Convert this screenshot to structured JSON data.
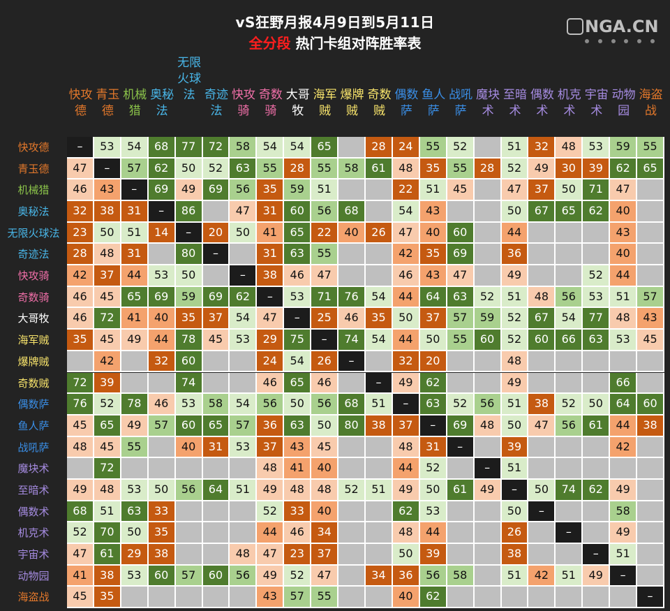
{
  "title": {
    "line1": "vS狂野月报4月9日到5月11日",
    "line2_red": "全分段",
    "line2_rest": " 热门卡组对阵胜率表"
  },
  "watermark": {
    "text": "NGA.CN"
  },
  "colors": {
    "very_high": "#4f7c2e",
    "high": "#a9d08e",
    "mid_high": "#d9ecc9",
    "mid_low": "#f8cbad",
    "low": "#f4a26d",
    "very_low": "#c55a11",
    "empty": "#bfbfbf",
    "self": "#1c1c1c",
    "background": "#232323"
  },
  "decks": [
    {
      "name": "快攻德",
      "color": "#e3782b"
    },
    {
      "name": "青玉德",
      "color": "#e3782b"
    },
    {
      "name": "机械猎",
      "color": "#8bc34a"
    },
    {
      "name": "奥秘法",
      "color": "#49b6e8"
    },
    {
      "name": "无限火球法",
      "color": "#49b6e8"
    },
    {
      "name": "奇迹法",
      "color": "#49b6e8"
    },
    {
      "name": "快攻骑",
      "color": "#f06fa8"
    },
    {
      "name": "奇数骑",
      "color": "#f06fa8"
    },
    {
      "name": "大哥牧",
      "color": "#ffffff"
    },
    {
      "name": "海军贼",
      "color": "#f7e36b"
    },
    {
      "name": "爆牌贼",
      "color": "#f7e36b"
    },
    {
      "name": "奇数贼",
      "color": "#f7e36b"
    },
    {
      "name": "偶数萨",
      "color": "#3a8ee6"
    },
    {
      "name": "鱼人萨",
      "color": "#3a8ee6"
    },
    {
      "name": "战吼萨",
      "color": "#3a8ee6"
    },
    {
      "name": "魔块术",
      "color": "#a58be0"
    },
    {
      "name": "至暗术",
      "color": "#a58be0"
    },
    {
      "name": "偶数术",
      "color": "#a58be0"
    },
    {
      "name": "机克术",
      "color": "#a58be0"
    },
    {
      "name": "宇宙术",
      "color": "#a58be0"
    },
    {
      "name": "动物园",
      "color": "#a58be0"
    },
    {
      "name": "海盗战",
      "color": "#e3782b"
    }
  ],
  "chart_data": {
    "type": "heatmap",
    "title": "vS狂野月报4月9日到5月11日 全分段 热门卡组对阵胜率表",
    "diagonal_label": "–",
    "x": [
      "快攻德",
      "青玉德",
      "机械猎",
      "奥秘法",
      "无限火球法",
      "奇迹法",
      "快攻骑",
      "奇数骑",
      "大哥牧",
      "海军贼",
      "爆牌贼",
      "奇数贼",
      "偶数萨",
      "鱼人萨",
      "战吼萨",
      "魔块术",
      "至暗术",
      "偶数术",
      "机克术",
      "宇宙术",
      "动物园",
      "海盗战"
    ],
    "y": [
      "快攻德",
      "青玉德",
      "机械猎",
      "奥秘法",
      "无限火球法",
      "奇迹法",
      "快攻骑",
      "奇数骑",
      "大哥牧",
      "海军贼",
      "爆牌贼",
      "奇数贼",
      "偶数萨",
      "鱼人萨",
      "战吼萨",
      "魔块术",
      "至暗术",
      "偶数术",
      "机克术",
      "宇宙术",
      "动物园",
      "海盗战"
    ],
    "values": [
      [
        "self",
        53,
        54,
        68,
        77,
        72,
        58,
        54,
        54,
        65,
        null,
        28,
        24,
        55,
        52,
        null,
        51,
        32,
        48,
        53,
        59,
        55
      ],
      [
        47,
        "self",
        57,
        62,
        50,
        52,
        63,
        55,
        28,
        55,
        58,
        61,
        48,
        35,
        55,
        28,
        52,
        49,
        30,
        39,
        62,
        65
      ],
      [
        46,
        43,
        "self",
        69,
        49,
        69,
        56,
        35,
        59,
        51,
        null,
        null,
        22,
        51,
        45,
        null,
        47,
        37,
        50,
        71,
        47,
        null
      ],
      [
        32,
        38,
        31,
        "self",
        86,
        null,
        47,
        31,
        60,
        56,
        68,
        null,
        54,
        43,
        null,
        null,
        50,
        67,
        65,
        62,
        40,
        null
      ],
      [
        23,
        50,
        51,
        14,
        "self",
        20,
        50,
        41,
        65,
        22,
        40,
        26,
        47,
        40,
        60,
        null,
        44,
        null,
        null,
        null,
        43,
        null
      ],
      [
        28,
        48,
        31,
        null,
        80,
        "self",
        null,
        31,
        63,
        55,
        null,
        null,
        42,
        35,
        69,
        null,
        36,
        null,
        null,
        null,
        40,
        null
      ],
      [
        42,
        37,
        44,
        53,
        50,
        null,
        "self",
        38,
        46,
        47,
        null,
        null,
        46,
        43,
        47,
        null,
        49,
        null,
        null,
        52,
        44,
        null
      ],
      [
        46,
        45,
        65,
        69,
        59,
        69,
        62,
        "self",
        53,
        71,
        76,
        54,
        44,
        64,
        63,
        52,
        51,
        48,
        56,
        53,
        51,
        57
      ],
      [
        46,
        72,
        41,
        40,
        35,
        37,
        54,
        47,
        "self",
        25,
        46,
        35,
        50,
        37,
        57,
        59,
        52,
        67,
        54,
        77,
        48,
        43
      ],
      [
        35,
        45,
        49,
        44,
        78,
        45,
        53,
        29,
        75,
        "self",
        74,
        54,
        44,
        50,
        55,
        60,
        52,
        60,
        66,
        63,
        53,
        45
      ],
      [
        null,
        42,
        null,
        32,
        60,
        null,
        null,
        24,
        54,
        26,
        "self",
        null,
        32,
        20,
        null,
        null,
        48,
        null,
        null,
        null,
        null,
        null
      ],
      [
        72,
        39,
        null,
        null,
        74,
        null,
        null,
        46,
        65,
        46,
        null,
        "self",
        49,
        62,
        null,
        null,
        49,
        null,
        null,
        null,
        66,
        null
      ],
      [
        76,
        52,
        78,
        46,
        53,
        58,
        54,
        56,
        50,
        56,
        68,
        51,
        "self",
        63,
        52,
        56,
        51,
        38,
        52,
        50,
        64,
        60
      ],
      [
        45,
        65,
        49,
        57,
        60,
        65,
        57,
        36,
        63,
        50,
        80,
        38,
        37,
        "self",
        69,
        48,
        50,
        47,
        56,
        61,
        44,
        38
      ],
      [
        48,
        45,
        55,
        null,
        40,
        31,
        53,
        37,
        43,
        45,
        null,
        null,
        48,
        31,
        "self",
        null,
        39,
        null,
        null,
        null,
        42,
        null
      ],
      [
        null,
        72,
        null,
        null,
        null,
        null,
        null,
        48,
        41,
        40,
        null,
        null,
        44,
        52,
        null,
        "self",
        51,
        null,
        null,
        null,
        null,
        null
      ],
      [
        49,
        48,
        53,
        50,
        56,
        64,
        51,
        49,
        48,
        48,
        52,
        51,
        49,
        50,
        61,
        49,
        "self",
        50,
        74,
        62,
        49,
        null
      ],
      [
        68,
        51,
        63,
        33,
        null,
        null,
        null,
        52,
        33,
        40,
        null,
        null,
        62,
        53,
        null,
        null,
        50,
        "self",
        null,
        null,
        58,
        null
      ],
      [
        52,
        70,
        50,
        35,
        null,
        null,
        null,
        44,
        46,
        34,
        null,
        null,
        48,
        44,
        null,
        null,
        26,
        null,
        "self",
        null,
        49,
        null
      ],
      [
        47,
        61,
        29,
        38,
        null,
        null,
        48,
        47,
        23,
        37,
        null,
        null,
        50,
        39,
        null,
        null,
        38,
        null,
        null,
        "self",
        51,
        null
      ],
      [
        41,
        38,
        53,
        60,
        57,
        60,
        56,
        49,
        52,
        47,
        null,
        34,
        36,
        56,
        58,
        null,
        51,
        42,
        51,
        49,
        "self",
        null
      ],
      [
        45,
        35,
        null,
        null,
        null,
        null,
        null,
        43,
        57,
        55,
        null,
        null,
        40,
        62,
        null,
        null,
        null,
        null,
        null,
        null,
        null,
        "self"
      ]
    ]
  }
}
